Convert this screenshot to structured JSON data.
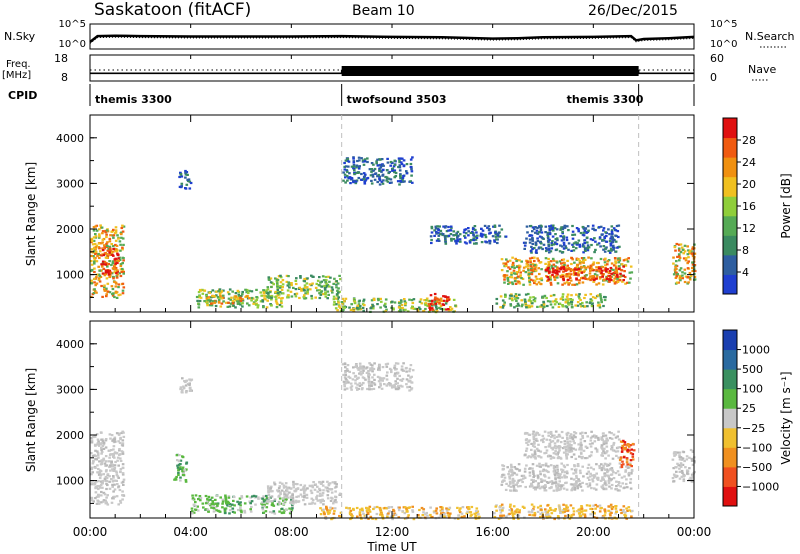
{
  "header": {
    "title": "Saskatoon (fitACF)",
    "beam": "Beam 10",
    "date": "26/Dec/2015"
  },
  "strip_labels": {
    "nsky": "N.Sky",
    "nsearch": "N.Search",
    "freq_line1": "Freq.",
    "freq_line2": "[MHz]",
    "nave": "Nave",
    "cpid": "CPID"
  },
  "icons": {
    "nsearch_legend": "dotted-line",
    "nave_legend": "dotted-line"
  },
  "colors": {
    "frame": "#000000",
    "divider": "#c0c0c0",
    "power_scale": [
      "#1f3fd0",
      "#2e5ea0",
      "#3a8a60",
      "#55aa55",
      "#8fce3a",
      "#f0c020",
      "#f09010",
      "#f05a10",
      "#e01010"
    ],
    "velocity_scale": [
      "#1a3fb0",
      "#2a6aa0",
      "#3a9060",
      "#5ab840",
      "#c8c8c8",
      "#f0c030",
      "#f09020",
      "#f05020",
      "#e01010"
    ]
  },
  "chart_data": [
    {
      "type": "line",
      "name": "noise",
      "x_range_hours": [
        0,
        24
      ],
      "left_ticks": [
        "10^5",
        "10^0"
      ],
      "right_ticks": [
        "10^5",
        "10^0"
      ],
      "series": [
        {
          "name": "N.Sky",
          "x": [
            0,
            0.3,
            1,
            2,
            4,
            6,
            8,
            10,
            12,
            14,
            16,
            17,
            18,
            20,
            21.5,
            21.7,
            22,
            23,
            24
          ],
          "y": [
            1.2,
            2.6,
            2.7,
            2.6,
            2.5,
            2.5,
            2.5,
            2.6,
            2.4,
            2.3,
            2.0,
            2.1,
            2.3,
            2.4,
            2.6,
            1.6,
            1.9,
            2.1,
            2.4
          ]
        }
      ]
    },
    {
      "type": "line",
      "name": "frequency",
      "x_range_hours": [
        0,
        24
      ],
      "left_ticks": [
        "18",
        "8"
      ],
      "right_ticks": [
        "60",
        "0"
      ],
      "series": [
        {
          "name": "Freq.",
          "x": [
            0,
            10,
            10,
            21.8,
            21.8,
            24
          ],
          "y": [
            10.6,
            10.6,
            11.8,
            11.8,
            10.6,
            10.6
          ]
        }
      ]
    },
    {
      "type": "table",
      "name": "cpid",
      "segments": [
        {
          "label": "themis 3300",
          "start": 0,
          "end": 10
        },
        {
          "label": "twofsound 3503",
          "start": 10,
          "end": 21.8
        },
        {
          "label": "themis 3300",
          "start": 21.8,
          "end": 24
        }
      ],
      "ends_hours": [
        21.8
      ]
    },
    {
      "type": "heatmap",
      "name": "power",
      "ylabel": "Slant Range [km]",
      "y_ticks": [
        "1000",
        "2000",
        "3000",
        "4000"
      ],
      "yrange": [
        180,
        4500
      ],
      "colorbar_label": "Power [dB]",
      "colorbar_ticks": [
        "4",
        "8",
        "12",
        "16",
        "20",
        "24",
        "28"
      ],
      "colorbar_range": [
        0,
        32
      ],
      "regions": [
        {
          "t0": 0.0,
          "t1": 1.3,
          "r0": 500,
          "r1": 2100,
          "level": "high"
        },
        {
          "t0": 0.4,
          "t1": 1.1,
          "r0": 1000,
          "r1": 1600,
          "level": "max"
        },
        {
          "t0": 3.5,
          "t1": 4.0,
          "r0": 2900,
          "r1": 3300,
          "level": "low"
        },
        {
          "t0": 4.2,
          "t1": 7.6,
          "r0": 300,
          "r1": 700,
          "level": "mid"
        },
        {
          "t0": 4.6,
          "t1": 6.3,
          "r0": 380,
          "r1": 560,
          "level": "high"
        },
        {
          "t0": 7.0,
          "t1": 9.9,
          "r0": 500,
          "r1": 1000,
          "level": "mid"
        },
        {
          "t0": 10.0,
          "t1": 12.8,
          "r0": 3000,
          "r1": 3600,
          "level": "low"
        },
        {
          "t0": 9.6,
          "t1": 14.5,
          "r0": 200,
          "r1": 500,
          "level": "mid"
        },
        {
          "t0": 13.4,
          "t1": 14.2,
          "r0": 250,
          "r1": 600,
          "level": "max"
        },
        {
          "t0": 13.5,
          "t1": 16.5,
          "r0": 1700,
          "r1": 2100,
          "level": "low"
        },
        {
          "t0": 16.3,
          "t1": 21.5,
          "r0": 800,
          "r1": 1400,
          "level": "high"
        },
        {
          "t0": 18.0,
          "t1": 21.2,
          "r0": 900,
          "r1": 1200,
          "level": "max"
        },
        {
          "t0": 17.2,
          "t1": 21.0,
          "r0": 1500,
          "r1": 2100,
          "level": "low"
        },
        {
          "t0": 16.0,
          "t1": 20.5,
          "r0": 300,
          "r1": 600,
          "level": "mid"
        },
        {
          "t0": 23.1,
          "t1": 24.0,
          "r0": 800,
          "r1": 1700,
          "level": "high"
        }
      ]
    },
    {
      "type": "heatmap",
      "name": "velocity",
      "ylabel": "Slant Range [km]",
      "y_ticks": [
        "1000",
        "2000",
        "3000",
        "4000"
      ],
      "yrange": [
        180,
        4500
      ],
      "colorbar_label": "Velocity [m s⁻¹]",
      "colorbar_ticks": [
        "1000",
        "500",
        "100",
        "25",
        "−25",
        "−100",
        "−500",
        "−1000"
      ],
      "regions": [
        {
          "t0": 0.0,
          "t1": 1.3,
          "r0": 500,
          "r1": 2100,
          "level": "gray"
        },
        {
          "t0": 3.5,
          "t1": 4.0,
          "r0": 2900,
          "r1": 3300,
          "level": "gray"
        },
        {
          "t0": 3.3,
          "t1": 3.8,
          "r0": 1000,
          "r1": 1600,
          "level": "green"
        },
        {
          "t0": 4.0,
          "t1": 8.0,
          "r0": 300,
          "r1": 700,
          "level": "green"
        },
        {
          "t0": 7.0,
          "t1": 9.9,
          "r0": 500,
          "r1": 1000,
          "level": "gray"
        },
        {
          "t0": 10.0,
          "t1": 12.8,
          "r0": 3000,
          "r1": 3600,
          "level": "gray"
        },
        {
          "t0": 9.0,
          "t1": 15.5,
          "r0": 180,
          "r1": 450,
          "level": "yellow"
        },
        {
          "t0": 16.3,
          "t1": 21.5,
          "r0": 800,
          "r1": 1400,
          "level": "gray"
        },
        {
          "t0": 17.2,
          "t1": 21.0,
          "r0": 1500,
          "r1": 2100,
          "level": "gray"
        },
        {
          "t0": 16.0,
          "t1": 21.5,
          "r0": 180,
          "r1": 500,
          "level": "yellow"
        },
        {
          "t0": 21.0,
          "t1": 21.6,
          "r0": 1300,
          "r1": 1900,
          "level": "red"
        },
        {
          "t0": 23.1,
          "t1": 24.0,
          "r0": 1000,
          "r1": 1700,
          "level": "gray"
        }
      ]
    }
  ],
  "x_axis": {
    "label": "Time UT",
    "ticks": [
      "00:00",
      "04:00",
      "08:00",
      "12:00",
      "16:00",
      "20:00",
      "00:00"
    ],
    "tick_hours": [
      0,
      4,
      8,
      12,
      16,
      20,
      24
    ],
    "range": [
      0,
      24
    ]
  }
}
